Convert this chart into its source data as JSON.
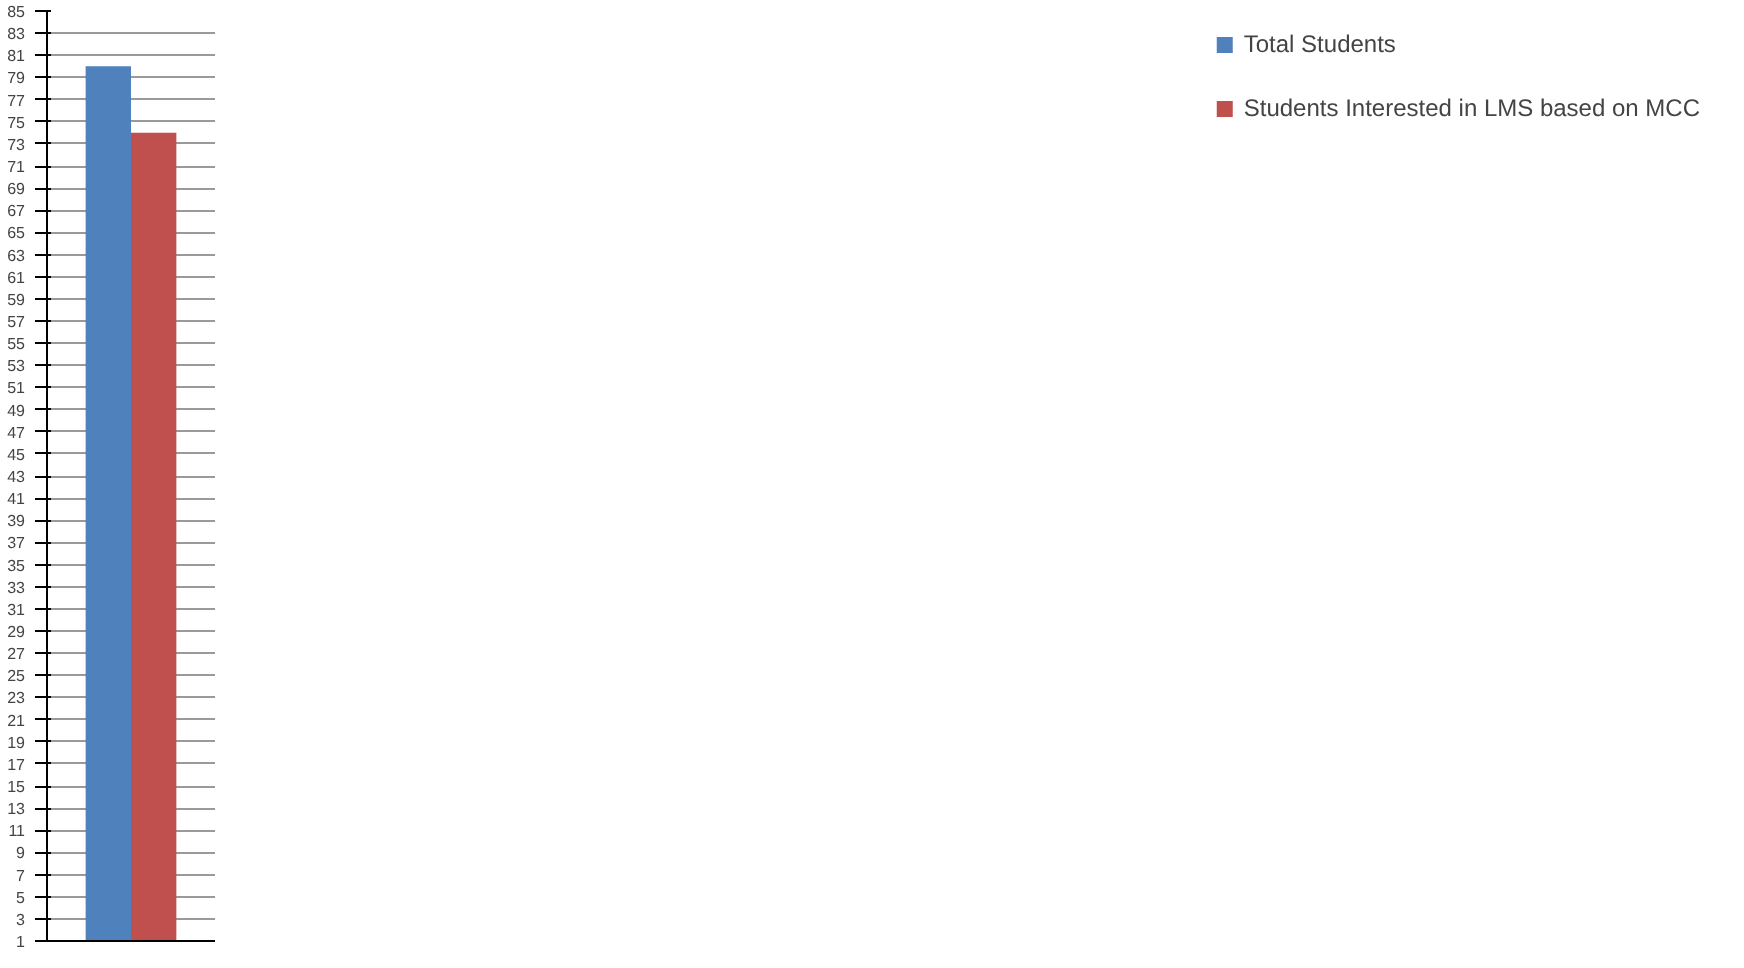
{
  "chart_data": {
    "type": "bar",
    "categories": [
      null
    ],
    "series": [
      {
        "name": "Total Students",
        "color": "#4f81bd",
        "values": [
          80
        ]
      },
      {
        "name": "Students Interested in LMS based on MCC",
        "color": "#c0504d",
        "values": [
          74
        ]
      }
    ],
    "ylim": [
      1,
      85
    ],
    "yticks": [
      1,
      3,
      5,
      7,
      9,
      11,
      13,
      15,
      17,
      19,
      21,
      23,
      25,
      27,
      29,
      31,
      33,
      35,
      37,
      39,
      41,
      43,
      45,
      47,
      49,
      51,
      53,
      55,
      57,
      59,
      61,
      63,
      65,
      67,
      69,
      71,
      73,
      75,
      77,
      79,
      81,
      83,
      85
    ],
    "grid": "y",
    "legend": "right",
    "tick_labels": "y"
  }
}
